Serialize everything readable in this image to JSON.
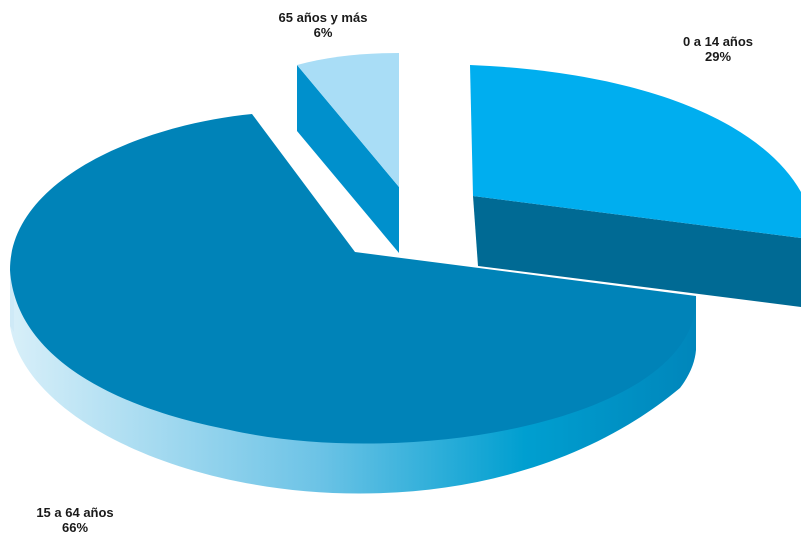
{
  "chart_data": {
    "type": "pie",
    "style": "3d-exploded",
    "slices": [
      {
        "label": "0 a 14 años",
        "value": 29,
        "value_label": "29%",
        "top_color": "#00aeef",
        "side_color": "#006a94"
      },
      {
        "label": "15 a 64 años",
        "value": 66,
        "value_label": "66%",
        "top_color": "#0083b8",
        "side_color_from": "#d8eff9",
        "side_color_to": "#008fc4"
      },
      {
        "label": "65 años y más",
        "value": 6,
        "value_label": "6%",
        "top_color": "#a9ddf6",
        "side_color": "#0090cc"
      }
    ],
    "legend": "none"
  }
}
